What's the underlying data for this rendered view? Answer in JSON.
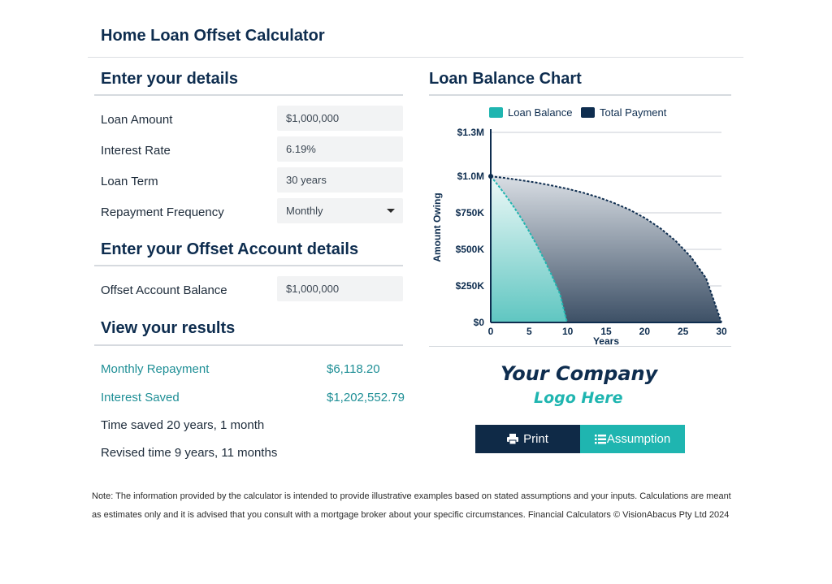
{
  "app": {
    "title": "Home Loan Offset Calculator"
  },
  "details": {
    "heading": "Enter your details",
    "loan_amount": {
      "label": "Loan Amount",
      "value": "$1,000,000"
    },
    "interest_rate": {
      "label": "Interest Rate",
      "value": "6.19%"
    },
    "loan_term": {
      "label": "Loan Term",
      "value": "30 years"
    },
    "repayment_frequency": {
      "label": "Repayment Frequency",
      "value": "Monthly"
    }
  },
  "offset": {
    "heading": "Enter your Offset Account details",
    "balance": {
      "label": "Offset Account Balance",
      "value": "$1,000,000"
    }
  },
  "results": {
    "heading": "View your results",
    "monthly_repayment": {
      "label": "Monthly Repayment",
      "value": "$6,118.20"
    },
    "interest_saved": {
      "label": "Interest Saved",
      "value": "$1,202,552.79"
    },
    "time_saved": "Time saved 20 years, 1 month",
    "revised_time": "Revised time 9 years, 11 months"
  },
  "chart": {
    "heading": "Loan Balance Chart"
  },
  "chart_data": {
    "type": "area",
    "ylabel": "Amount Owing",
    "xlabel": "Years",
    "ylim": [
      0,
      1300000
    ],
    "xlim": [
      0,
      30
    ],
    "y_ticks": [
      {
        "value": 0,
        "label": "$0"
      },
      {
        "value": 250000,
        "label": "$250K"
      },
      {
        "value": 500000,
        "label": "$500K"
      },
      {
        "value": 750000,
        "label": "$750K"
      },
      {
        "value": 1000000,
        "label": "$1.0M"
      },
      {
        "value": 1300000,
        "label": "$1.3M"
      }
    ],
    "x_ticks": [
      0,
      5,
      10,
      15,
      20,
      25,
      30
    ],
    "legend_position": "top",
    "grid": true,
    "colors": {
      "loan_balance": "#1fb5b0",
      "total_payment": "#0e2d4f"
    },
    "series": [
      {
        "name": "Loan Balance",
        "x": [
          0,
          1,
          2,
          3,
          4,
          5,
          6,
          7,
          8,
          9,
          9.92
        ],
        "values": [
          1000000,
          935000,
          865000,
          790000,
          710000,
          622000,
          527000,
          425000,
          315000,
          195000,
          0
        ]
      },
      {
        "name": "Total Payment",
        "x": [
          0,
          2,
          4,
          6,
          8,
          10,
          12,
          14,
          16,
          18,
          20,
          22,
          24,
          26,
          28,
          30
        ],
        "values": [
          1000000,
          987000,
          972000,
          956000,
          936000,
          914000,
          888000,
          856000,
          818000,
          772000,
          716000,
          646000,
          560000,
          450000,
          302000,
          0
        ]
      }
    ]
  },
  "logo": {
    "line1": "Your Company",
    "line2": "Logo Here"
  },
  "buttons": {
    "print": "Print",
    "assumption": "Assumption"
  },
  "note": "Note: The information provided by the calculator is intended to provide illustrative examples based on stated assumptions and your inputs. Calculations are meant as estimates only and it is advised that you consult with a mortgage broker about your specific circumstances. Financial Calculators © VisionAbacus Pty Ltd 2024"
}
